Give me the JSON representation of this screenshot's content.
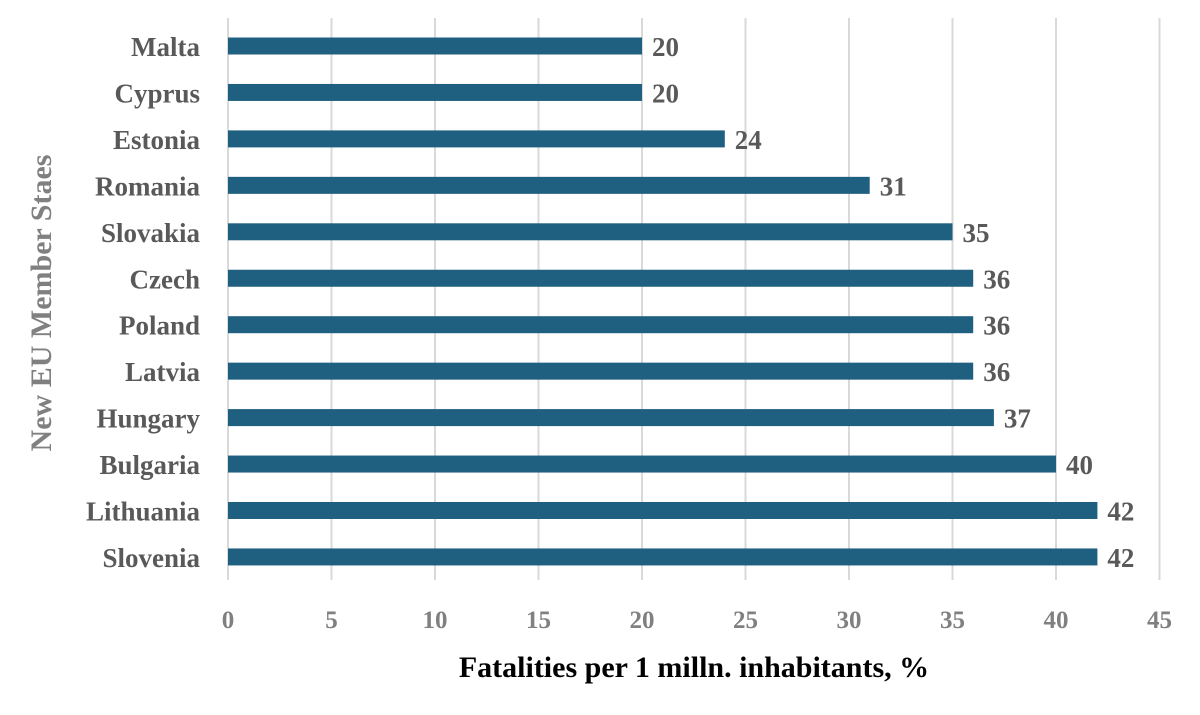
{
  "chart_data": {
    "type": "bar",
    "orientation": "horizontal",
    "categories": [
      "Malta",
      "Cyprus",
      "Estonia",
      "Romania",
      "Slovakia",
      "Czech",
      "Poland",
      "Latvia",
      "Hungary",
      "Bulgaria",
      "Lithuania",
      "Slovenia"
    ],
    "values": [
      20,
      20,
      24,
      31,
      35,
      36,
      36,
      36,
      37,
      40,
      42,
      42
    ],
    "data_labels": [
      "20",
      "20",
      "24",
      "31",
      "35",
      "36",
      "36",
      "36",
      "37",
      "40",
      "42",
      "42"
    ],
    "title": "",
    "xlabel": "Fatalities per 1 milln. inhabitants, %",
    "ylabel": "New EU Member Staes",
    "xlim": [
      0,
      45
    ],
    "xticks": [
      "0",
      "5",
      "10",
      "15",
      "20",
      "25",
      "30",
      "35",
      "40",
      "45"
    ],
    "grid": "vertical",
    "legend": "none",
    "bar_color": "#1f5f80"
  }
}
